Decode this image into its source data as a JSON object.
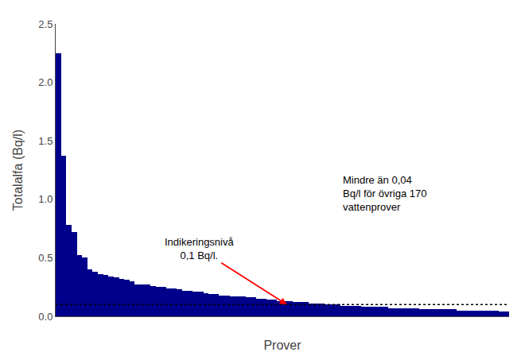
{
  "chart_data": {
    "type": "bar",
    "xlabel": "Prover",
    "ylabel": "Totalalfa (Bq/l)",
    "categories": [
      null,
      null,
      null,
      null,
      null,
      null,
      null,
      null,
      null,
      null,
      null,
      null,
      null,
      null,
      null,
      null,
      null,
      null,
      null,
      null,
      null,
      null,
      null,
      null,
      null,
      null,
      null,
      null,
      null,
      null,
      null,
      null,
      null,
      null,
      null,
      null,
      null,
      null,
      null,
      null,
      null,
      null,
      null,
      null,
      null,
      null,
      null,
      null,
      null,
      null,
      null,
      null,
      null,
      null,
      null,
      null,
      null,
      null,
      null,
      null,
      null,
      null,
      null,
      null,
      null,
      null,
      null,
      null,
      null,
      null,
      null,
      null,
      null,
      null,
      null,
      null,
      null,
      null,
      null,
      null,
      null,
      null,
      null,
      null,
      null,
      null
    ],
    "values": [
      2.25,
      1.37,
      0.78,
      0.72,
      0.52,
      0.5,
      0.4,
      0.38,
      0.36,
      0.35,
      0.34,
      0.33,
      0.32,
      0.31,
      0.3,
      0.27,
      0.27,
      0.27,
      0.26,
      0.25,
      0.25,
      0.24,
      0.24,
      0.23,
      0.22,
      0.22,
      0.21,
      0.21,
      0.2,
      0.19,
      0.19,
      0.18,
      0.18,
      0.17,
      0.17,
      0.17,
      0.16,
      0.16,
      0.15,
      0.15,
      0.14,
      0.14,
      0.13,
      0.13,
      0.13,
      0.12,
      0.12,
      0.12,
      0.11,
      0.11,
      0.11,
      0.1,
      0.1,
      0.1,
      0.09,
      0.09,
      0.09,
      0.09,
      0.08,
      0.08,
      0.08,
      0.08,
      0.08,
      0.07,
      0.07,
      0.07,
      0.07,
      0.07,
      0.07,
      0.06,
      0.06,
      0.06,
      0.06,
      0.06,
      0.06,
      0.06,
      0.05,
      0.05,
      0.05,
      0.05,
      0.05,
      0.05,
      0.05,
      0.05,
      0.04,
      0.04
    ],
    "color": "#00008B",
    "ylim": [
      0,
      2.5
    ],
    "yticks": [
      {
        "value": 0,
        "label": "0.0"
      },
      0.5,
      {
        "value": 1,
        "label": "1.0"
      },
      1.5,
      {
        "value": 2,
        "label": "2.0"
      },
      2.5
    ],
    "hline": {
      "value": 0.1,
      "line_style": "dotted",
      "color": "black"
    },
    "annotations": [
      {
        "text": "Indikeringsnivå\n0,1 Bq/l.",
        "arrow": true,
        "color": "red"
      },
      {
        "text": "Mindre än 0,04\nBq/l för övriga 170\nvattenprover"
      }
    ],
    "grid": false,
    "tick_labels": "y"
  }
}
